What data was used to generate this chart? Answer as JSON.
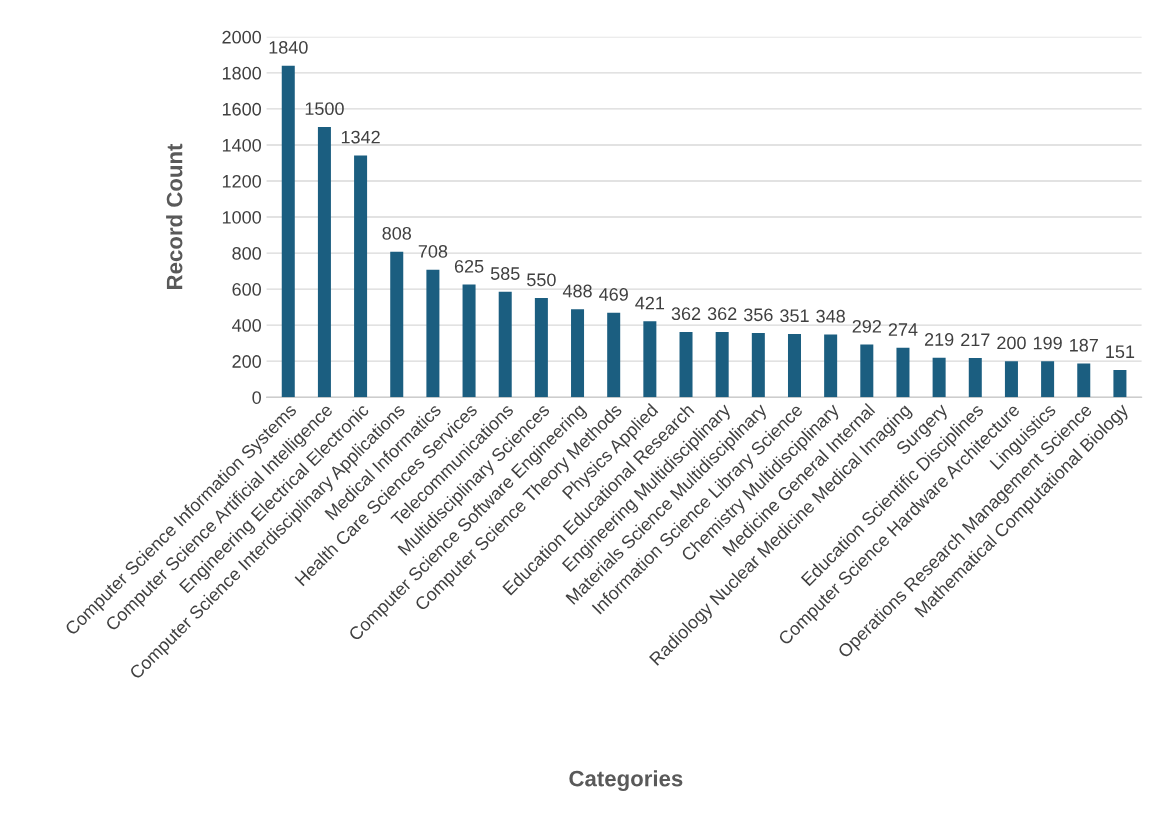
{
  "chart_data": {
    "type": "bar",
    "xlabel": "Categories",
    "ylabel": "Record Count",
    "categories": [
      "Computer Science Information Systems",
      "Computer Science Artificial Intelligence",
      "Engineering Electrical Electronic",
      "Computer Science Interdisciplinary Applications",
      "Medical Informatics",
      "Health Care Sciences Services",
      "Telecommunications",
      "Multidisciplinary Sciences",
      "Computer Science Software Engineering",
      "Computer Science Theory Methods",
      "Physics Applied",
      "Education Educational Research",
      "Engineering Multidisciplinary",
      "Materials Science Multidisciplinary",
      "Information Science Library Science",
      "Chemistry Multidisciplinary",
      "Medicine General Internal",
      "Radiology Nuclear Medicine Medical Imaging",
      "Surgery",
      "Education Scientific Disciplines",
      "Computer Science Hardware Architecture",
      "Linguistics",
      "Operations Research Management Science",
      "Mathematical Computational Biology"
    ],
    "values": [
      1840,
      1500,
      1342,
      808,
      708,
      625,
      585,
      550,
      488,
      469,
      421,
      362,
      362,
      356,
      351,
      348,
      292,
      274,
      219,
      217,
      200,
      199,
      187,
      151
    ],
    "color": "#1b5e80",
    "ylim": [
      0,
      2000
    ],
    "yticks": [
      0,
      200,
      400,
      600,
      800,
      1000,
      1200,
      1400,
      1600,
      1800,
      2000
    ],
    "grid": "y",
    "data_labels": true
  }
}
